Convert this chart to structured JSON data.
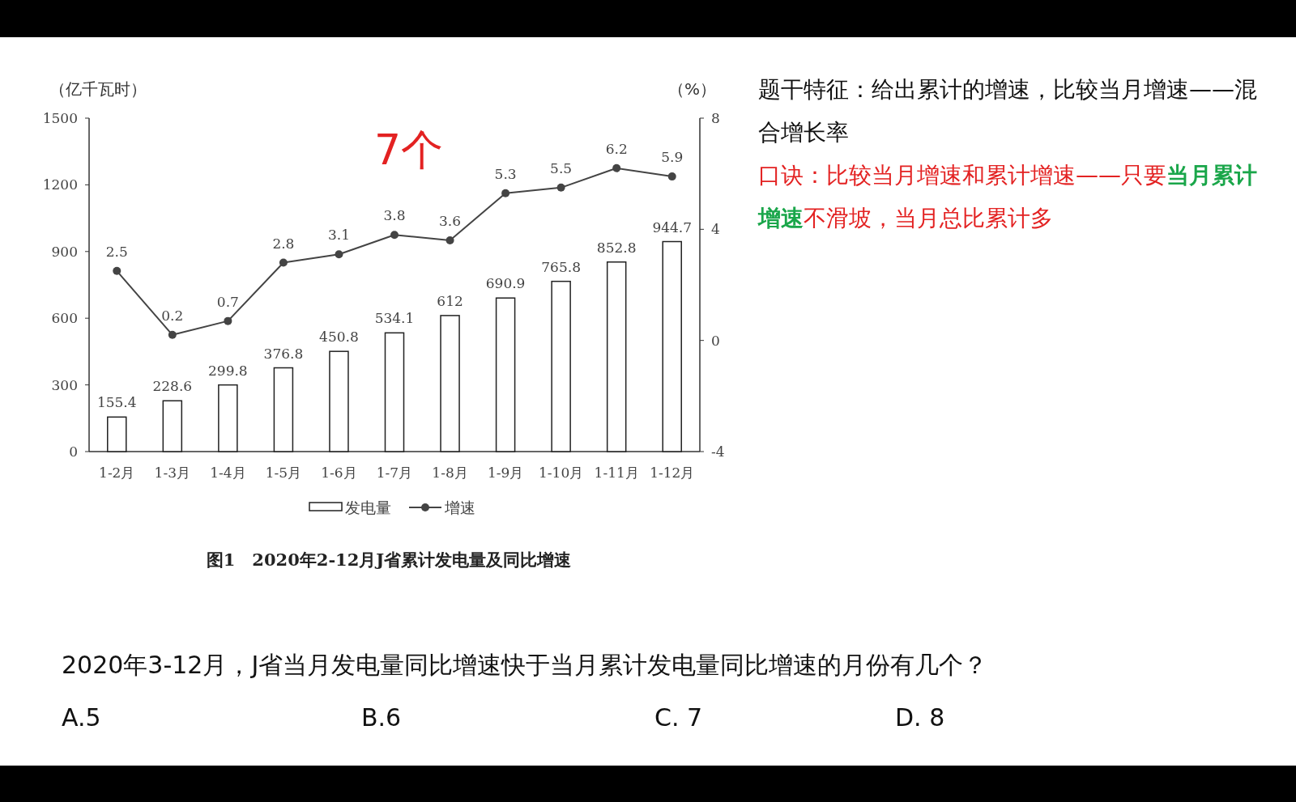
{
  "chart_data": {
    "type": "bar",
    "title": "图1　2020年2-12月J省累计发电量及同比增速",
    "ylabel": "（亿千瓦时）",
    "y2label": "（%）",
    "categories": [
      "1-2月",
      "1-3月",
      "1-4月",
      "1-5月",
      "1-6月",
      "1-7月",
      "1-8月",
      "1-9月",
      "1-10月",
      "1-11月",
      "1-12月"
    ],
    "series": [
      {
        "name": "发电量",
        "color": "#ffffff",
        "values": [
          155.4,
          228.6,
          299.8,
          376.8,
          450.8,
          534.1,
          612,
          690.9,
          765.8,
          852.8,
          944.7
        ]
      },
      {
        "name": "增速",
        "type": "line",
        "axis": "y2",
        "color": "#444444",
        "values": [
          2.5,
          0.2,
          0.7,
          2.8,
          3.1,
          3.8,
          3.6,
          5.3,
          5.5,
          6.2,
          5.9
        ]
      }
    ],
    "ylim": [
      0,
      1500
    ],
    "yticks": [
      0,
      300,
      600,
      900,
      1200,
      1500
    ],
    "y2lim": [
      -4,
      8
    ],
    "y2ticks": [
      -4,
      0,
      4,
      8
    ],
    "marker": "circle",
    "data_labels": true,
    "legend": "bottom",
    "annotations": [
      "题干特征：给出累计的增速，比较当月增速——混合增长率",
      "口诀：比较当月增速和累计增速——只要**当月累计增速**不滑坡，当月总比累计多",
      "2020年3-12月，J省当月发电量同比增速快于当月累计发电量同比增速的月份有几个？",
      "A.5",
      "B.6",
      "C. 7",
      "D. 8",
      "7个"
    ]
  }
}
